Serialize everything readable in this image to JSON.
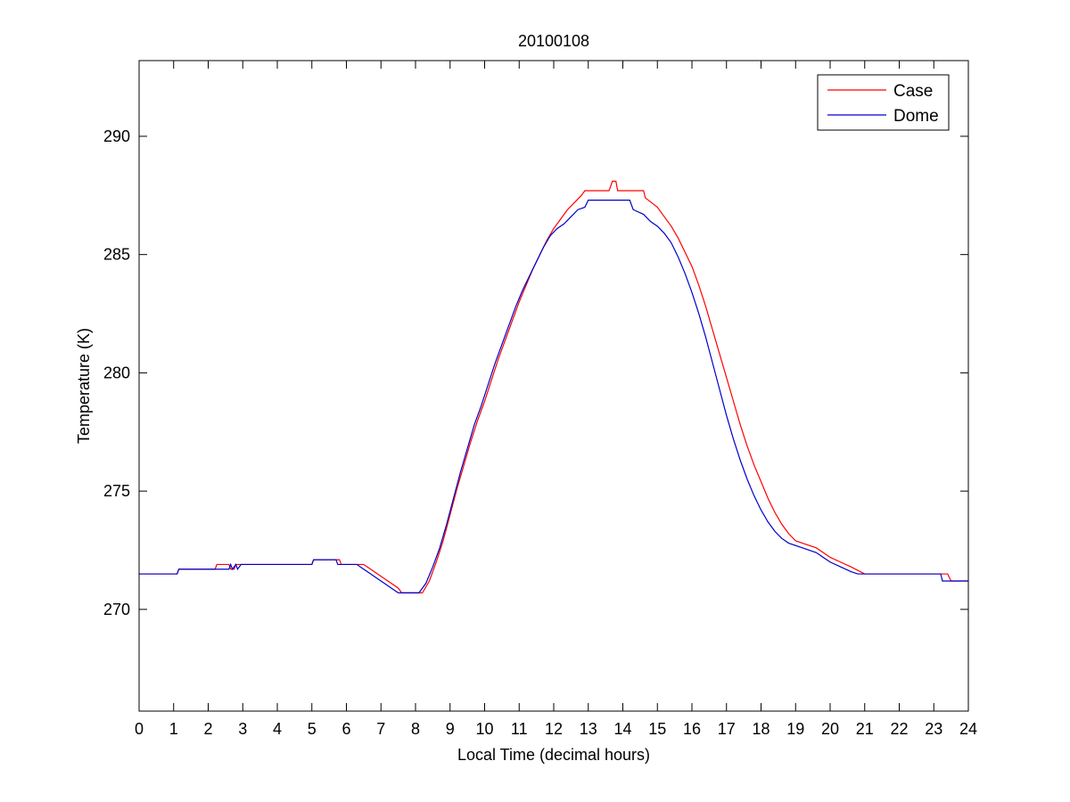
{
  "chart_data": {
    "type": "line",
    "title": "20100108",
    "xlabel": "Local Time (decimal hours)",
    "ylabel": "Temperature (K)",
    "xlim": [
      0,
      24
    ],
    "ylim": [
      265.7,
      293.2
    ],
    "xticks": [
      0,
      1,
      2,
      3,
      4,
      5,
      6,
      7,
      8,
      9,
      10,
      11,
      12,
      13,
      14,
      15,
      16,
      17,
      18,
      19,
      20,
      21,
      22,
      23,
      24
    ],
    "yticks": [
      270,
      275,
      280,
      285,
      290
    ],
    "grid": false,
    "legend_position": "top-right",
    "series": [
      {
        "name": "Case",
        "color": "#ff0000",
        "points": [
          [
            0,
            271.5
          ],
          [
            1.1,
            271.5
          ],
          [
            1.15,
            271.7
          ],
          [
            2.2,
            271.7
          ],
          [
            2.25,
            271.9
          ],
          [
            2.6,
            271.9
          ],
          [
            2.65,
            271.7
          ],
          [
            2.75,
            271.7
          ],
          [
            2.8,
            271.9
          ],
          [
            5.0,
            271.9
          ],
          [
            5.05,
            272.1
          ],
          [
            5.8,
            272.1
          ],
          [
            5.85,
            271.9
          ],
          [
            6.5,
            271.9
          ],
          [
            6.7,
            271.7
          ],
          [
            6.9,
            271.5
          ],
          [
            7.1,
            271.3
          ],
          [
            7.3,
            271.1
          ],
          [
            7.5,
            270.9
          ],
          [
            7.6,
            270.7
          ],
          [
            8.2,
            270.7
          ],
          [
            8.4,
            271.2
          ],
          [
            8.6,
            272.0
          ],
          [
            8.8,
            272.9
          ],
          [
            9.0,
            274.0
          ],
          [
            9.2,
            275.1
          ],
          [
            9.4,
            276.1
          ],
          [
            9.6,
            277.1
          ],
          [
            9.8,
            278.0
          ],
          [
            10.0,
            278.8
          ],
          [
            10.2,
            279.7
          ],
          [
            10.4,
            280.6
          ],
          [
            10.6,
            281.4
          ],
          [
            10.8,
            282.2
          ],
          [
            11.0,
            283.0
          ],
          [
            11.2,
            283.7
          ],
          [
            11.4,
            284.4
          ],
          [
            11.6,
            285.0
          ],
          [
            11.8,
            285.6
          ],
          [
            12.0,
            286.1
          ],
          [
            12.2,
            286.5
          ],
          [
            12.4,
            286.9
          ],
          [
            12.6,
            287.2
          ],
          [
            12.8,
            287.5
          ],
          [
            12.9,
            287.7
          ],
          [
            13.6,
            287.7
          ],
          [
            13.7,
            288.1
          ],
          [
            13.8,
            288.1
          ],
          [
            13.85,
            287.7
          ],
          [
            14.6,
            287.7
          ],
          [
            14.65,
            287.4
          ],
          [
            15.0,
            287.0
          ],
          [
            15.2,
            286.6
          ],
          [
            15.4,
            286.2
          ],
          [
            15.6,
            285.7
          ],
          [
            15.8,
            285.1
          ],
          [
            16.0,
            284.5
          ],
          [
            16.2,
            283.7
          ],
          [
            16.4,
            282.8
          ],
          [
            16.6,
            281.8
          ],
          [
            16.8,
            280.8
          ],
          [
            17.0,
            279.8
          ],
          [
            17.2,
            278.8
          ],
          [
            17.4,
            277.8
          ],
          [
            17.6,
            276.9
          ],
          [
            17.8,
            276.1
          ],
          [
            18.0,
            275.4
          ],
          [
            18.2,
            274.7
          ],
          [
            18.4,
            274.1
          ],
          [
            18.6,
            273.6
          ],
          [
            18.8,
            273.2
          ],
          [
            19.0,
            272.9
          ],
          [
            19.2,
            272.8
          ],
          [
            19.6,
            272.6
          ],
          [
            19.8,
            272.4
          ],
          [
            20.0,
            272.2
          ],
          [
            20.3,
            272.0
          ],
          [
            20.6,
            271.8
          ],
          [
            21.0,
            271.5
          ],
          [
            23.4,
            271.5
          ],
          [
            23.5,
            271.2
          ],
          [
            24,
            271.2
          ]
        ]
      },
      {
        "name": "Dome",
        "color": "#0000cc",
        "points": [
          [
            0,
            271.5
          ],
          [
            1.1,
            271.5
          ],
          [
            1.15,
            271.7
          ],
          [
            2.6,
            271.7
          ],
          [
            2.65,
            271.9
          ],
          [
            2.7,
            271.7
          ],
          [
            2.8,
            271.9
          ],
          [
            2.85,
            271.7
          ],
          [
            2.95,
            271.9
          ],
          [
            5.0,
            271.9
          ],
          [
            5.05,
            272.1
          ],
          [
            5.7,
            272.1
          ],
          [
            5.75,
            271.9
          ],
          [
            6.3,
            271.9
          ],
          [
            6.5,
            271.7
          ],
          [
            6.7,
            271.5
          ],
          [
            6.9,
            271.3
          ],
          [
            7.1,
            271.1
          ],
          [
            7.3,
            270.9
          ],
          [
            7.5,
            270.7
          ],
          [
            8.1,
            270.7
          ],
          [
            8.3,
            271.1
          ],
          [
            8.5,
            271.8
          ],
          [
            8.7,
            272.6
          ],
          [
            8.9,
            273.6
          ],
          [
            9.1,
            274.7
          ],
          [
            9.3,
            275.8
          ],
          [
            9.5,
            276.8
          ],
          [
            9.7,
            277.8
          ],
          [
            9.9,
            278.6
          ],
          [
            10.1,
            279.5
          ],
          [
            10.3,
            280.4
          ],
          [
            10.5,
            281.2
          ],
          [
            10.7,
            282.0
          ],
          [
            10.9,
            282.8
          ],
          [
            11.1,
            283.5
          ],
          [
            11.3,
            284.1
          ],
          [
            11.5,
            284.7
          ],
          [
            11.7,
            285.3
          ],
          [
            11.9,
            285.8
          ],
          [
            12.1,
            286.1
          ],
          [
            12.3,
            286.3
          ],
          [
            12.5,
            286.6
          ],
          [
            12.7,
            286.9
          ],
          [
            12.9,
            287.0
          ],
          [
            13.0,
            287.3
          ],
          [
            14.2,
            287.3
          ],
          [
            14.3,
            286.9
          ],
          [
            14.6,
            286.7
          ],
          [
            14.8,
            286.4
          ],
          [
            15.0,
            286.2
          ],
          [
            15.2,
            285.9
          ],
          [
            15.4,
            285.5
          ],
          [
            15.6,
            284.9
          ],
          [
            15.8,
            284.2
          ],
          [
            16.0,
            283.4
          ],
          [
            16.2,
            282.5
          ],
          [
            16.4,
            281.5
          ],
          [
            16.6,
            280.4
          ],
          [
            16.8,
            279.3
          ],
          [
            17.0,
            278.2
          ],
          [
            17.2,
            277.2
          ],
          [
            17.4,
            276.3
          ],
          [
            17.6,
            275.5
          ],
          [
            17.8,
            274.8
          ],
          [
            18.0,
            274.2
          ],
          [
            18.2,
            273.7
          ],
          [
            18.4,
            273.3
          ],
          [
            18.6,
            273.0
          ],
          [
            18.8,
            272.8
          ],
          [
            19.2,
            272.6
          ],
          [
            19.6,
            272.4
          ],
          [
            19.8,
            272.2
          ],
          [
            20.0,
            272.0
          ],
          [
            20.3,
            271.8
          ],
          [
            20.6,
            271.6
          ],
          [
            20.8,
            271.5
          ],
          [
            23.2,
            271.5
          ],
          [
            23.25,
            271.2
          ],
          [
            24,
            271.2
          ]
        ]
      }
    ]
  }
}
